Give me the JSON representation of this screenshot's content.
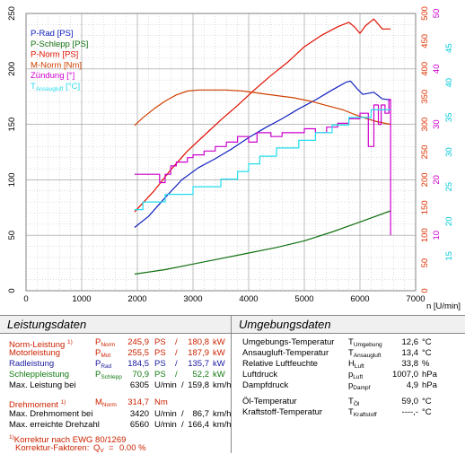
{
  "chart_data": {
    "type": "line",
    "x_axis": {
      "label": "n [U/min]",
      "range": [
        0,
        7000
      ],
      "ticks": [
        "0",
        "1000",
        "2000",
        "3000",
        "4000",
        "5000",
        "6000",
        "7000"
      ]
    },
    "left_axis": {
      "range": [
        0,
        250
      ],
      "ticks": [
        "0",
        "50",
        "100",
        "150",
        "200",
        "250"
      ]
    },
    "right_axes": [
      {
        "color": "#e03000",
        "range": [
          0,
          500
        ],
        "ticks": [
          "0",
          "50",
          "100",
          "150",
          "200",
          "250",
          "300",
          "350",
          "400",
          "450",
          "500"
        ]
      },
      {
        "color": "#cc00cc",
        "range": [
          0,
          50
        ],
        "ticks": [
          "10",
          "20",
          "30",
          "40",
          "50"
        ]
      },
      {
        "color": "#00c8d8",
        "range": [
          0,
          50
        ],
        "ticks": [
          "15",
          "20",
          "25",
          "30",
          "35",
          "40",
          "45"
        ]
      }
    ],
    "grid": true,
    "legend": {
      "placement": "top-left"
    },
    "series": [
      {
        "name": "P-Rad [PS]",
        "color": "#1020c0",
        "axis": "left",
        "x": [
          1950,
          2200,
          2500,
          2800,
          3100,
          3400,
          3700,
          4000,
          4300,
          4600,
          4900,
          5200,
          5500,
          5750,
          5830,
          5950,
          6050,
          6250,
          6400,
          6550
        ],
        "y": [
          57,
          67,
          84,
          100,
          111,
          119,
          128,
          138,
          147,
          155,
          164,
          172,
          181,
          188,
          189,
          182,
          177,
          179,
          173,
          172
        ]
      },
      {
        "name": "P-Schlepp [PS]",
        "color": "#107010",
        "axis": "left",
        "x": [
          1950,
          2500,
          3000,
          3500,
          4000,
          4500,
          5000,
          5500,
          6000,
          6550
        ],
        "y": [
          15,
          19,
          24,
          29,
          34,
          39,
          45,
          53,
          62,
          72
        ]
      },
      {
        "name": "P-Norm [PS]",
        "color": "#e01000",
        "axis": "left",
        "x": [
          1950,
          2300,
          2600,
          2900,
          3200,
          3500,
          3800,
          4100,
          4400,
          4700,
          5000,
          5300,
          5600,
          5800,
          5900,
          6000,
          6100,
          6250,
          6400,
          6550
        ],
        "y": [
          71,
          90,
          109,
          126,
          140,
          154,
          167,
          181,
          194,
          206,
          220,
          230,
          238,
          242,
          238,
          232,
          239,
          245,
          236,
          236
        ]
      },
      {
        "name": "M-Norm [Nm]",
        "color": "#d04000",
        "axis": "right-Nm",
        "x": [
          1950,
          2100,
          2300,
          2500,
          2700,
          2900,
          3100,
          3300,
          3600,
          3900,
          4200,
          4500,
          4800,
          5100,
          5400,
          5700,
          5900,
          6100,
          6300,
          6550
        ],
        "y": [
          298,
          312,
          328,
          342,
          353,
          360,
          362,
          362,
          362,
          360,
          356,
          352,
          348,
          342,
          334,
          326,
          318,
          311,
          305,
          300
        ]
      },
      {
        "name": "Zündung [°]",
        "color": "#cc00cc",
        "axis": "right-deg",
        "x": [
          1950,
          2400,
          2400,
          2500,
          2500,
          2600,
          2600,
          2700,
          2700,
          2900,
          2900,
          3000,
          3000,
          3200,
          3200,
          3400,
          3400,
          3600,
          3600,
          3800,
          3800,
          4000,
          4000,
          4150,
          4150,
          4400,
          4400,
          4600,
          4600,
          4800,
          4800,
          5000,
          5000,
          5200,
          5200,
          5400,
          5400,
          5600,
          5600,
          5800,
          5800,
          6000,
          6000,
          6150,
          6150,
          6250,
          6250,
          6330,
          6330,
          6380,
          6380,
          6450,
          6450,
          6520,
          6520,
          6550,
          6550
        ],
        "y": [
          21,
          21,
          19.5,
          19.5,
          21,
          21,
          22.5,
          22.5,
          23.2,
          23.2,
          24,
          24,
          24.5,
          24.5,
          25.2,
          25.2,
          26,
          26,
          26.8,
          26.8,
          27.8,
          27.8,
          26.8,
          26.8,
          28.5,
          28.5,
          27.8,
          27.8,
          28.5,
          28.5,
          28.5,
          28.5,
          29.2,
          29.2,
          28.5,
          28.5,
          29.5,
          29.5,
          30.2,
          30.2,
          31,
          31,
          32,
          32,
          26,
          26,
          33.5,
          33.5,
          30,
          30,
          33.5,
          33.5,
          32,
          32,
          34.5,
          34.5,
          10
        ]
      },
      {
        "name": "T_Ansaugluft [°C]",
        "color": "#22ddee",
        "axis": "right-temp",
        "x": [
          1950,
          2100,
          2100,
          2500,
          2500,
          3000,
          3000,
          3500,
          3500,
          3800,
          3800,
          4000,
          4000,
          4200,
          4200,
          4500,
          4500,
          4900,
          4900,
          5200,
          5200,
          5500,
          5500,
          5800,
          5800,
          6200,
          6200,
          6550
        ],
        "y": [
          21.7,
          21.7,
          22.8,
          22.8,
          23.9,
          23.9,
          25,
          25,
          26.1,
          26.1,
          27.2,
          27.2,
          28.3,
          28.3,
          29.4,
          29.4,
          30.6,
          30.6,
          31.7,
          31.7,
          32.8,
          32.8,
          33.9,
          33.9,
          35,
          35,
          36.1,
          36.1
        ]
      }
    ]
  },
  "legend_items": [
    {
      "label": "P-Rad [PS]",
      "color": "#1020c0"
    },
    {
      "label": "P-Schlepp [PS]",
      "color": "#107010"
    },
    {
      "label": "P-Norm [PS]",
      "color": "#e01000"
    },
    {
      "label": "M-Norm [Nm]",
      "color": "#d04000"
    },
    {
      "label": "Zündung [°]",
      "color": "#cc00cc"
    },
    {
      "label": "T",
      "sub": "Ansaugluft",
      "tail": " [°C]",
      "color": "#22ddee"
    }
  ],
  "left_table": {
    "title": "Leistungsdaten",
    "norm": {
      "label": "Norm-Leistung",
      "note": "1)",
      "sym": "P",
      "sub": "Norm",
      "ps": "245,9",
      "u1": "PS",
      "sep": "/",
      "kw": "180,8",
      "u2": "kW"
    },
    "motor": {
      "label": "Motorleistung",
      "sym": "P",
      "sub": "Mot",
      "ps": "255,5",
      "u1": "PS",
      "sep": "/",
      "kw": "187,9",
      "u2": "kW"
    },
    "rad": {
      "label": "Radleistung",
      "sym": "P",
      "sub": "Rad",
      "ps": "184,5",
      "u1": "PS",
      "sep": "/",
      "kw": "135,7",
      "u2": "kW"
    },
    "schlepp": {
      "label": "Schleppleistung",
      "sym": "P",
      "sub": "Schlepp",
      "ps": "70,9",
      "u1": "PS",
      "sep": "/",
      "kw": "52,2",
      "u2": "kW"
    },
    "maxl": {
      "label": "Max. Leistung bei",
      "rpm": "6305",
      "u1": "U/min",
      "sep": "/",
      "kmh": "159,8",
      "u2": "km/h"
    },
    "drehm": {
      "label": "Drehmoment",
      "note": "1)",
      "sym": "M",
      "sub": "Norm",
      "val": "314,7",
      "unit": "Nm"
    },
    "maxd": {
      "label": "Max. Drehmoment bei",
      "rpm": "3420",
      "u1": "U/min",
      "sep": "/",
      "kmh": "86,7",
      "u2": "km/h"
    },
    "maxdz": {
      "label": "Max. erreichte Drehzahl",
      "rpm": "6560",
      "u1": "U/min",
      "sep": "/",
      "kmh": "166,4",
      "u2": "km/h"
    },
    "korr1": {
      "note": "1)",
      "text": "Korrektur nach EWG 80/1269"
    },
    "korr2": {
      "text": "Korrektur-Faktoren:",
      "sym": "Q",
      "sub": "V",
      "eq": "=",
      "val": "0.00 %"
    }
  },
  "right_table": {
    "title": "Umgebungsdaten",
    "rows": [
      {
        "label": "Umgebungs-Temperatur",
        "sym": "T",
        "sub": "Umgebung",
        "val": "12,6",
        "unit": "°C"
      },
      {
        "label": "Ansaugluft-Temperatur",
        "sym": "T",
        "sub": "Ansaugluft",
        "val": "13,4",
        "unit": "°C"
      },
      {
        "label": "Relative Luftfeuchte",
        "sym": "H",
        "sub": "Luft",
        "val": "33,8",
        "unit": "%"
      },
      {
        "label": "Luftdruck",
        "sym": "p",
        "sub": "Luft",
        "val": "1007,0",
        "unit": "hPa"
      },
      {
        "label": "Dampfdruck",
        "sym": "p",
        "sub": "Dampf",
        "val": "4,9",
        "unit": "hPa"
      },
      {
        "label": "Öl-Temperatur",
        "sym": "T",
        "sub": "Öl",
        "val": "59,0",
        "unit": "°C"
      },
      {
        "label": "Kraftstoff-Temperatur",
        "sym": "T",
        "sub": "Kraftstoff",
        "val": "----,-",
        "unit": "°C"
      }
    ]
  }
}
